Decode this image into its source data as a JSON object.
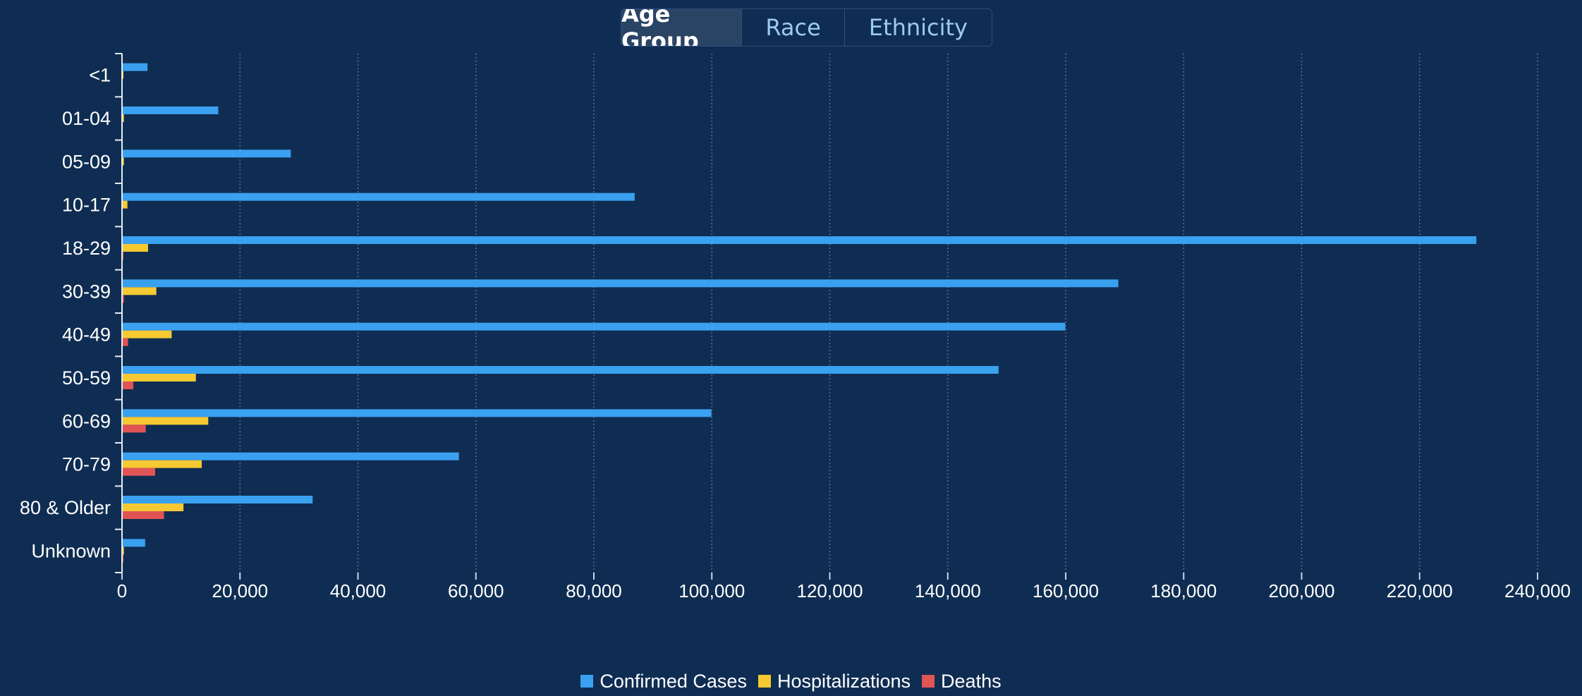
{
  "tabs": [
    {
      "label": "Age Group",
      "active": true
    },
    {
      "label": "Race",
      "active": false
    },
    {
      "label": "Ethnicity",
      "active": false
    }
  ],
  "colors": {
    "background": "#0f2d52",
    "confirmed": "#3aa0f0",
    "hospitalizations": "#f6c932",
    "deaths": "#e05453",
    "gridline": "#5d7a9c",
    "text": "#ffffff"
  },
  "chart_data": {
    "type": "bar",
    "orientation": "horizontal",
    "categories": [
      "<1",
      "01-04",
      "05-09",
      "10-17",
      "18-29",
      "30-39",
      "40-49",
      "50-59",
      "60-69",
      "70-79",
      "80 & Older",
      "Unknown"
    ],
    "series": [
      {
        "name": "Confirmed Cases",
        "color": "#3aa0f0",
        "values": [
          4200,
          16200,
          28500,
          86800,
          229500,
          168800,
          159800,
          148500,
          99800,
          57000,
          32200,
          3800
        ]
      },
      {
        "name": "Hospitalizations",
        "color": "#f6c932",
        "values": [
          100,
          200,
          200,
          800,
          4300,
          5700,
          8300,
          12400,
          14500,
          13400,
          10300,
          200
        ]
      },
      {
        "name": "Deaths",
        "color": "#e05453",
        "values": [
          0,
          0,
          0,
          0,
          100,
          200,
          900,
          1800,
          3900,
          5500,
          7000,
          100
        ]
      }
    ],
    "xlim": [
      0,
      240000
    ],
    "xticks": [
      "0",
      "20,000",
      "40,000",
      "60,000",
      "80,000",
      "100,000",
      "120,000",
      "140,000",
      "160,000",
      "180,000",
      "200,000",
      "220,000",
      "240,000"
    ],
    "grid": true,
    "legend_position": "bottom-center"
  }
}
